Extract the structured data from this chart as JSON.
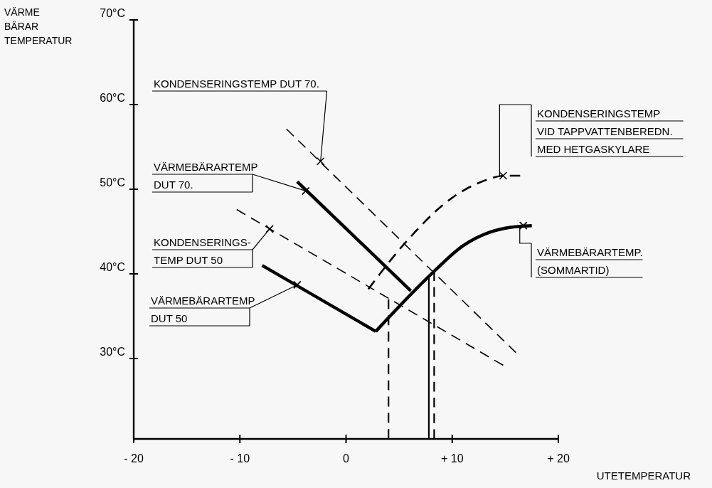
{
  "chart_data": {
    "type": "line",
    "xlabel": "UTETEMPERATUR",
    "ylabel": "VÄRME\nBÄRAR\nTEMPERATUR",
    "xlim": [
      -20,
      20
    ],
    "ylim": [
      20.5,
      70
    ],
    "xticks": [
      {
        "value": -20,
        "label": "- 20"
      },
      {
        "value": -10,
        "label": "- 10"
      },
      0,
      {
        "value": 10,
        "label": "+ 10"
      },
      {
        "value": 20,
        "label": "+ 20"
      }
    ],
    "yticks": [
      {
        "value": 30,
        "label": "30°C"
      },
      {
        "value": 40,
        "label": "40°C"
      },
      {
        "value": 50,
        "label": "50°C"
      },
      {
        "value": 60,
        "label": "60°C"
      },
      {
        "value": 70,
        "label": "70°C"
      }
    ],
    "grid": false,
    "marker": "none",
    "series": [
      {
        "color": "#000000",
        "line_style": "dashed",
        "x": [
          -5.6,
          16.0
        ],
        "values": [
          57.1,
          30.7
        ]
      },
      {
        "color": "#000000",
        "line_style": "solid",
        "x": [
          -4.6,
          6.1
        ],
        "values": [
          50.9,
          38.0
        ]
      },
      {
        "color": "#000000",
        "line_style": "dashed",
        "x": [
          2.1,
          5.6,
          9.9,
          12.6,
          15.0,
          16.4
        ],
        "values": [
          38.2,
          43.7,
          48.9,
          50.8,
          51.6,
          51.6
        ]
      },
      {
        "color": "#000000",
        "line_style": "dashed",
        "x": [
          -10.3,
          14.8
        ],
        "values": [
          47.6,
          29.2
        ]
      },
      {
        "color": "#000000",
        "line_style": "solid",
        "x": [
          2.8,
          8.3,
          11.0,
          13.5,
          15.5,
          17.5
        ],
        "values": [
          33.2,
          40.3,
          43.3,
          44.9,
          45.5,
          45.7
        ]
      },
      {
        "color": "#000000",
        "line_style": "solid",
        "x": [
          -7.9,
          2.8
        ],
        "values": [
          41.0,
          33.2
        ]
      },
      {
        "color": "#000000",
        "line_style": "dashed",
        "x": [
          4.0,
          4.0
        ],
        "values": [
          20.5,
          37.0
        ]
      },
      {
        "color": "#000000",
        "line_style": "solid",
        "x": [
          7.8,
          7.8
        ],
        "values": [
          20.5,
          39.6
        ]
      },
      {
        "color": "#000000",
        "line_style": "dashed",
        "x": [
          8.3,
          8.3
        ],
        "values": [
          20.5,
          40.3
        ]
      }
    ],
    "annotations": [
      {
        "text": "KONDENSERINGSTEMP DUT 70.",
        "x": -2.4,
        "y": 53.3
      },
      {
        "text": "VÄRMEBÄRARTEMP\nDUT 70.",
        "x": -3.8,
        "y": 49.8
      },
      {
        "text": "KONDENSERINGSTEMP\nVID TAPPVATTENBEREDN.\nMED HETGASKYLARE",
        "x": 14.8,
        "y": 51.6
      },
      {
        "text": "KONDENSERINGS-\nTEMP DUT 50",
        "x": -7.2,
        "y": 45.3
      },
      {
        "text": "VÄRMEBÄRARTEMP.\n(SOMMARTID)",
        "x": 16.7,
        "y": 45.7
      },
      {
        "text": "VÄRMEBÄRARTEMP\nDUT 50",
        "x": -4.6,
        "y": 38.7
      }
    ]
  }
}
